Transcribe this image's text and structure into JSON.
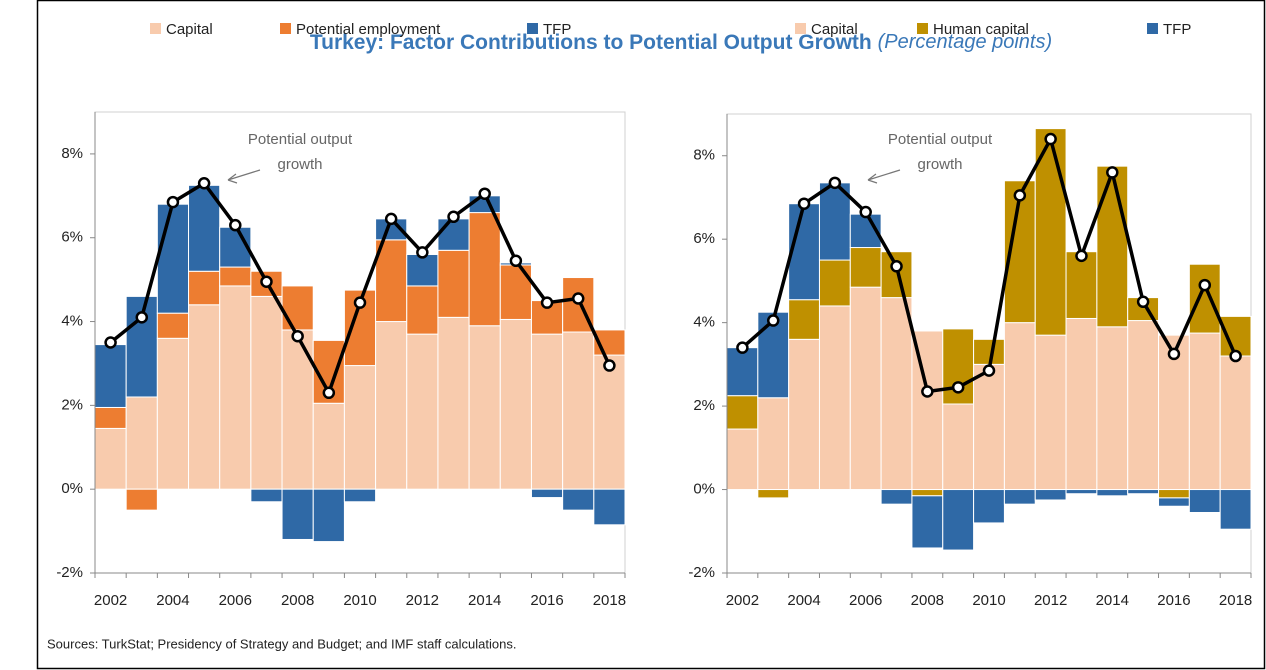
{
  "title": "Turkey: Factor Contributions to Potential Output Growth",
  "subtitle": "(Percentage points)",
  "source": "Sources: TurkStat; Presidency of Strategy and Budget; and IMF staff calculations.",
  "chart_data": [
    {
      "type": "stacked-bar-line",
      "categories": [
        "2002",
        null,
        "2004",
        null,
        "2006",
        null,
        "2008",
        null,
        "2010",
        null,
        "2012",
        null,
        "2014",
        null,
        "2016",
        null,
        "2018"
      ],
      "series": [
        {
          "name": "Capital",
          "color": "#f8cbad",
          "values": [
            1.45,
            2.2,
            3.6,
            4.4,
            4.85,
            4.6,
            3.8,
            2.05,
            2.95,
            4.0,
            3.7,
            4.1,
            3.9,
            4.05,
            3.7,
            3.75,
            3.2
          ]
        },
        {
          "name": "Potential employment",
          "color": "#ed7d31",
          "values": [
            0.5,
            -0.5,
            0.6,
            0.8,
            0.45,
            0.6,
            1.05,
            1.5,
            1.8,
            1.95,
            1.15,
            1.6,
            2.7,
            1.3,
            0.8,
            1.3,
            0.6
          ]
        },
        {
          "name": "TFP",
          "color": "#2f69a6",
          "values": [
            1.5,
            2.4,
            2.6,
            2.05,
            0.95,
            -0.3,
            -1.2,
            -1.25,
            -0.3,
            0.5,
            0.75,
            0.75,
            0.4,
            0.05,
            -0.2,
            -0.5,
            -0.85
          ]
        }
      ],
      "line": {
        "color": "#000000",
        "values": [
          3.5,
          4.1,
          6.85,
          7.3,
          6.3,
          4.95,
          3.65,
          2.3,
          4.45,
          6.45,
          5.65,
          6.5,
          7.05,
          5.45,
          4.45,
          4.55,
          2.95
        ]
      },
      "annotation": [
        "Potential output",
        "growth"
      ],
      "ylim": [
        -2,
        9
      ],
      "yticks": [
        {
          "value": -2,
          "label": "-2%"
        },
        {
          "value": 0,
          "label": "0%"
        },
        {
          "value": 2,
          "label": "2%"
        },
        {
          "value": 4,
          "label": "4%"
        },
        {
          "value": 6,
          "label": "6%"
        },
        {
          "value": 8,
          "label": "8%"
        }
      ]
    },
    {
      "type": "stacked-bar-line",
      "categories": [
        "2002",
        null,
        "2004",
        null,
        "2006",
        null,
        "2008",
        null,
        "2010",
        null,
        "2012",
        null,
        "2014",
        null,
        "2016",
        null,
        "2018"
      ],
      "series": [
        {
          "name": "Capital",
          "color": "#f8cbad",
          "values": [
            1.45,
            2.2,
            3.6,
            4.4,
            4.85,
            4.6,
            3.8,
            2.05,
            3.0,
            4.0,
            3.7,
            4.1,
            3.9,
            4.05,
            3.7,
            3.75,
            3.2
          ]
        },
        {
          "name": "Human capital",
          "color": "#bf9000",
          "values": [
            0.8,
            -0.2,
            0.95,
            1.1,
            0.95,
            1.1,
            -0.15,
            1.8,
            0.6,
            3.4,
            4.95,
            1.6,
            3.85,
            0.55,
            -0.2,
            1.65,
            0.95
          ]
        },
        {
          "name": "TFP",
          "color": "#2f69a6",
          "values": [
            1.15,
            2.05,
            2.3,
            1.85,
            0.8,
            -0.35,
            -1.25,
            -1.45,
            -0.8,
            -0.35,
            -0.25,
            -0.1,
            -0.15,
            -0.1,
            -0.2,
            -0.55,
            -0.95
          ]
        }
      ],
      "line": {
        "color": "#000000",
        "values": [
          3.4,
          4.05,
          6.85,
          7.35,
          6.65,
          5.35,
          2.35,
          2.45,
          2.85,
          7.05,
          8.4,
          5.6,
          7.6,
          4.5,
          3.25,
          4.9,
          3.2
        ]
      },
      "annotation": [
        "Potential output",
        "growth"
      ],
      "ylim": [
        -2,
        9
      ],
      "yticks": [
        {
          "value": -2,
          "label": "-2%"
        },
        {
          "value": 0,
          "label": "0%"
        },
        {
          "value": 2,
          "label": "2%"
        },
        {
          "value": 4,
          "label": "4%"
        },
        {
          "value": 6,
          "label": "6%"
        },
        {
          "value": 8,
          "label": "8%"
        }
      ]
    }
  ]
}
